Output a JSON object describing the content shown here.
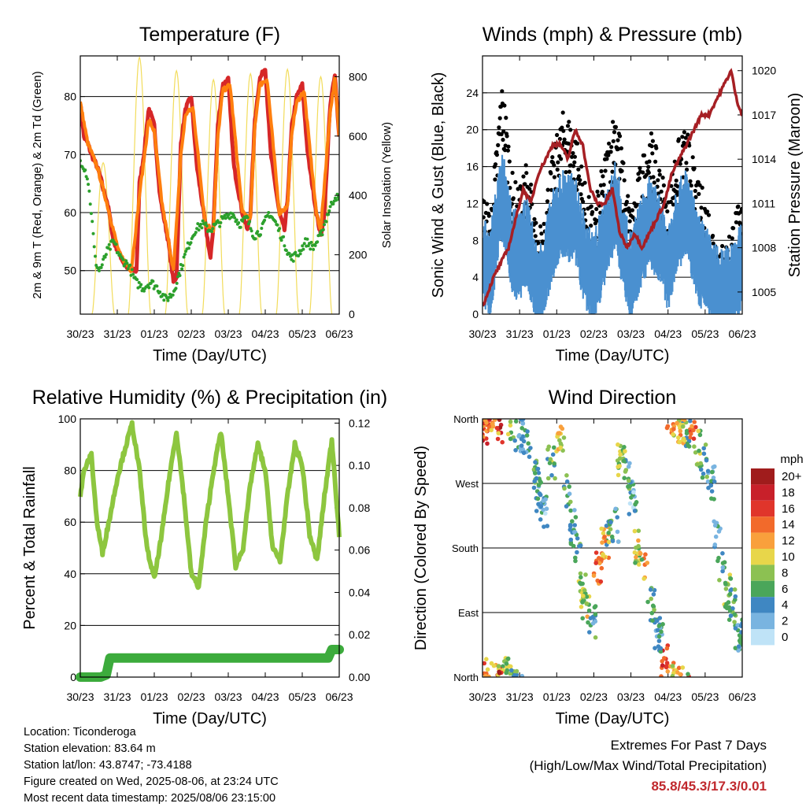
{
  "chart_data": [
    {
      "type": "line",
      "title": "Temperature (F)",
      "xlabel": "Time (Day/UTC)",
      "ylabel": "2m & 9m T (Red, Orange) & 2m Td (Green)",
      "ylabel_right": "Solar Insolation (Yellow)",
      "x_ticks": [
        "30/23",
        "31/23",
        "01/23",
        "02/23",
        "03/23",
        "04/23",
        "05/23",
        "06/23"
      ],
      "ylim": [
        42.5,
        87
      ],
      "y_ticks": [
        50,
        60,
        70,
        80
      ],
      "ylim_right": [
        0,
        870
      ],
      "y_ticks_right": [
        0,
        200,
        400,
        600,
        800
      ],
      "grid": "horizontal",
      "series": [
        {
          "color": "#d62728",
          "t": [
            0,
            0.1,
            0.2,
            0.3,
            0.45,
            0.55,
            0.62,
            0.72,
            0.78,
            0.9,
            1.05,
            1.2,
            1.38,
            1.52,
            1.6,
            1.72,
            1.85,
            2.0,
            2.15,
            2.38,
            2.52,
            2.6,
            2.72,
            2.85,
            3.0,
            3.15,
            3.38,
            3.52,
            3.6,
            3.72,
            3.85,
            4.0,
            4.15,
            4.38,
            4.52,
            4.6,
            4.72,
            4.85,
            5.0,
            5.15,
            5.38,
            5.52,
            5.6,
            5.72,
            5.85,
            6.0,
            6.15,
            6.38,
            6.5,
            6.6,
            6.75,
            6.88,
            7.0
          ],
          "values": [
            79,
            73,
            72,
            70,
            68,
            66,
            64,
            62,
            60,
            55,
            53,
            51,
            50,
            50,
            65,
            70,
            78,
            75,
            63,
            55,
            48,
            49,
            72,
            78,
            80,
            68,
            58,
            52,
            58,
            75,
            82,
            83,
            68,
            60,
            57,
            60,
            76,
            83,
            85,
            70,
            60,
            57,
            62,
            75,
            80,
            82,
            70,
            60,
            56,
            60,
            78,
            84,
            73
          ]
        },
        {
          "color": "#ff7f0e",
          "t": [
            0,
            0.2,
            0.45,
            0.62,
            0.78,
            1.05,
            1.38,
            1.6,
            1.72,
            1.85,
            2.0,
            2.2,
            2.52,
            2.72,
            2.85,
            3.05,
            3.38,
            3.6,
            3.72,
            3.85,
            4.05,
            4.38,
            4.6,
            4.72,
            4.85,
            5.05,
            5.38,
            5.6,
            5.72,
            5.85,
            6.05,
            6.38,
            6.5,
            6.75,
            6.88,
            7.0
          ],
          "values": [
            79,
            72,
            68,
            64,
            60,
            53,
            50,
            63,
            69,
            76,
            74,
            62,
            50,
            70,
            77,
            78,
            58,
            57,
            73,
            81,
            82,
            60,
            59,
            75,
            82,
            83,
            60,
            61,
            74,
            79,
            81,
            60,
            57,
            77,
            83,
            73
          ]
        },
        {
          "color": "#2ca02c",
          "t": [
            0,
            0.1,
            0.2,
            0.3,
            0.4,
            0.5,
            0.6,
            0.7,
            0.9,
            1.1,
            1.3,
            1.5,
            1.7,
            1.9,
            2.1,
            2.3,
            2.5,
            2.7,
            2.9,
            3.1,
            3.3,
            3.5,
            3.7,
            3.9,
            4.1,
            4.3,
            4.5,
            4.7,
            4.9,
            5.1,
            5.3,
            5.5,
            5.7,
            5.9,
            6.1,
            6.3,
            6.5,
            6.7,
            6.9,
            7.0
          ],
          "values": [
            69,
            68,
            66,
            60,
            52,
            50,
            51,
            53,
            55,
            52,
            51,
            48,
            47,
            48,
            47,
            45,
            46,
            50,
            54,
            57,
            58,
            57,
            58,
            59,
            60,
            58,
            59,
            56,
            57,
            60,
            58,
            55,
            52,
            53,
            55,
            54,
            56,
            60,
            63,
            62
          ]
        }
      ],
      "insolation": {
        "color": "#f2dc5b",
        "peak_t": [
          0.62,
          1.6,
          2.6,
          3.6,
          4.6,
          5.6,
          6.5
        ],
        "peak_values": [
          510,
          865,
          820,
          790,
          810,
          825,
          800
        ]
      }
    },
    {
      "type": "scatter",
      "title": "Winds (mph) & Pressure (mb)",
      "xlabel": "Time (Day/UTC)",
      "ylabel": "Sonic Wind & Gust (Blue, Black)",
      "ylabel_right": "Station Pressure (Maroon)",
      "x_ticks": [
        "30/23",
        "31/23",
        "01/23",
        "02/23",
        "03/23",
        "04/23",
        "05/23",
        "06/23"
      ],
      "ylim": [
        0,
        28
      ],
      "y_ticks": [
        0,
        4,
        8,
        12,
        16,
        20,
        24
      ],
      "ylim_right": [
        1003.5,
        1021
      ],
      "y_ticks_right": [
        1005,
        1008,
        1011,
        1014,
        1017,
        1020
      ],
      "grid": "horizontal",
      "gust_color": "#000000",
      "wind_color": "#4a90d0",
      "gust": {
        "t": [
          0,
          0.2,
          0.4,
          0.5,
          0.6,
          0.8,
          1.0,
          1.2,
          1.5,
          1.8,
          2.0,
          2.2,
          2.5,
          2.8,
          3.0,
          3.3,
          3.6,
          3.8,
          4.0,
          4.2,
          4.5,
          4.8,
          5.0,
          5.2,
          5.5,
          5.8,
          6.0,
          6.2,
          6.5,
          6.8,
          7.0
        ],
        "values": [
          10,
          8,
          16,
          22,
          20,
          12,
          10,
          14,
          5,
          12,
          16,
          19,
          17,
          10,
          8,
          14,
          20,
          13,
          8,
          12,
          17,
          13,
          9,
          15,
          17,
          11,
          10,
          7,
          4,
          8,
          9
        ]
      },
      "wind": {
        "t": [
          0,
          0.2,
          0.4,
          0.5,
          0.6,
          0.8,
          1.0,
          1.2,
          1.5,
          1.8,
          2.0,
          2.2,
          2.5,
          2.8,
          3.0,
          3.3,
          3.6,
          3.8,
          4.0,
          4.2,
          4.5,
          4.8,
          5.0,
          5.2,
          5.5,
          5.8,
          6.0,
          6.2,
          6.5,
          6.8,
          7.0
        ],
        "values": [
          7,
          5,
          11,
          14,
          13,
          8,
          7,
          9,
          3,
          8,
          11,
          12,
          11,
          6,
          5,
          9,
          13,
          8,
          5,
          8,
          11,
          9,
          6,
          10,
          12,
          7,
          6,
          4,
          3,
          5,
          6
        ]
      },
      "pressure": {
        "color": "#a61f24",
        "t": [
          0,
          0.3,
          0.5,
          0.7,
          0.9,
          1.1,
          1.3,
          1.5,
          1.7,
          1.9,
          2.1,
          2.3,
          2.5,
          2.7,
          2.9,
          3.1,
          3.3,
          3.5,
          3.7,
          3.9,
          4.1,
          4.3,
          4.5,
          4.7,
          4.9,
          5.1,
          5.3,
          5.5,
          5.7,
          5.9,
          6.1,
          6.3,
          6.5,
          6.7,
          6.85,
          7.0
        ],
        "values": [
          1004,
          1006,
          1007,
          1008,
          1010,
          1012,
          1011,
          1013,
          1014,
          1015,
          1015,
          1014,
          1016,
          1015,
          1012,
          1011,
          1011,
          1012,
          1009,
          1008,
          1009,
          1008,
          1009,
          1010,
          1011,
          1013,
          1014,
          1015,
          1016,
          1017,
          1017,
          1018,
          1019,
          1020,
          1018,
          1017
        ]
      }
    },
    {
      "type": "line",
      "title": "Relative Humidity (%) & Precipitation (in)",
      "xlabel": "Time (Day/UTC)",
      "ylabel": "Percent & Total Rainfall",
      "x_ticks": [
        "30/23",
        "31/23",
        "01/23",
        "02/23",
        "03/23",
        "04/23",
        "05/23",
        "06/23"
      ],
      "ylim": [
        0,
        100
      ],
      "y_ticks": [
        0,
        20,
        40,
        60,
        80,
        100
      ],
      "ylim_right": [
        0,
        0.122
      ],
      "y_ticks_right": [
        0.0,
        0.02,
        0.04,
        0.06,
        0.08,
        0.1,
        0.12
      ],
      "grid": "horizontal",
      "series": [
        {
          "name": "Relative Humidity",
          "color": "#8dc63f",
          "t": [
            0,
            0.1,
            0.3,
            0.45,
            0.6,
            0.8,
            1.0,
            1.2,
            1.4,
            1.6,
            1.8,
            2.0,
            2.2,
            2.4,
            2.6,
            2.8,
            3.0,
            3.2,
            3.4,
            3.6,
            3.8,
            4.0,
            4.2,
            4.4,
            4.6,
            4.8,
            5.0,
            5.2,
            5.4,
            5.6,
            5.8,
            6.0,
            6.2,
            6.4,
            6.6,
            6.8,
            7.0
          ],
          "values": [
            70,
            80,
            86,
            60,
            48,
            62,
            77,
            88,
            98,
            80,
            50,
            38,
            55,
            77,
            95,
            70,
            40,
            35,
            60,
            80,
            95,
            70,
            43,
            50,
            75,
            90,
            80,
            50,
            45,
            70,
            90,
            82,
            55,
            45,
            70,
            92,
            55
          ]
        },
        {
          "name": "Total Precipitation",
          "color": "#3cab3c",
          "t": [
            0,
            0.3,
            0.55,
            0.7,
            0.8,
            1.0,
            2.0,
            3.0,
            4.0,
            5.0,
            6.0,
            6.7,
            6.8,
            7.0
          ],
          "values": [
            0.0,
            0.0,
            0.0,
            0.001,
            0.009,
            0.009,
            0.009,
            0.009,
            0.009,
            0.009,
            0.009,
            0.009,
            0.013,
            0.013
          ]
        }
      ]
    },
    {
      "type": "scatter",
      "title": "Wind Direction",
      "xlabel": "Time (Day/UTC)",
      "ylabel": "Direction (Colored By Speed)",
      "x_ticks": [
        "30/23",
        "31/23",
        "01/23",
        "02/23",
        "03/23",
        "04/23",
        "05/23",
        "06/23"
      ],
      "y_ticks": [
        "North",
        "East",
        "South",
        "West",
        "North"
      ],
      "y_tick_values": [
        0,
        90,
        180,
        270,
        360
      ],
      "ylim": [
        0,
        360
      ],
      "grid": "horizontal",
      "legend": {
        "title": "mph",
        "placement": "right",
        "labels": [
          "20+",
          "18",
          "16",
          "14",
          "12",
          "10",
          "8",
          "6",
          "4",
          "2",
          "0"
        ],
        "colors": [
          "#a01c1c",
          "#c8202a",
          "#e0352b",
          "#f26a2b",
          "#f9a03c",
          "#e8d64a",
          "#8cc152",
          "#4aa65a",
          "#3f87c2",
          "#79b4e0",
          "#bfe3f7"
        ]
      },
      "points": {
        "t": [
          0.05,
          0.1,
          0.2,
          0.35,
          0.5,
          0.65,
          0.85,
          1.0,
          1.2,
          1.45,
          1.55,
          1.65,
          1.85,
          2.1,
          2.3,
          2.45,
          2.55,
          2.7,
          2.8,
          2.95,
          3.1,
          3.3,
          3.45,
          3.6,
          3.75,
          3.9,
          4.05,
          4.2,
          4.35,
          4.55,
          4.75,
          4.9,
          5.05,
          5.2,
          5.35,
          5.5,
          5.65,
          5.8,
          5.95,
          6.15,
          6.3,
          6.45,
          6.6,
          6.75,
          6.9
        ],
        "dir": [
          355,
          350,
          5,
          358,
          352,
          3,
          345,
          340,
          320,
          280,
          250,
          230,
          300,
          330,
          260,
          210,
          170,
          120,
          100,
          80,
          150,
          190,
          200,
          210,
          300,
          280,
          250,
          180,
          150,
          100,
          60,
          20,
          5,
          355,
          350,
          345,
          340,
          320,
          300,
          270,
          200,
          150,
          120,
          100,
          60
        ],
        "speed": [
          14,
          16,
          12,
          10,
          18,
          8,
          6,
          4,
          5,
          6,
          4,
          3,
          7,
          10,
          5,
          4,
          6,
          8,
          9,
          5,
          14,
          12,
          6,
          4,
          8,
          5,
          3,
          9,
          12,
          6,
          4,
          16,
          14,
          10,
          12,
          6,
          14,
          8,
          6,
          4,
          3,
          5,
          8,
          6,
          4
        ]
      }
    }
  ],
  "footer": {
    "location": "Location: Ticonderoga",
    "elevation": "Station elevation: 83.64 m",
    "latlon": "Station lat/lon: 43.8747; -73.4188",
    "created": "Figure created on Wed, 2025-08-06, at 23:24 UTC",
    "recent": "Most recent data timestamp: 2025/08/06 23:15:00",
    "extremes_title": "Extremes For Past 7 Days",
    "extremes_sub": "(High/Low/Max Wind/Total Precipitation)",
    "extremes_values": "85.8/45.3/17.3/0.01"
  }
}
